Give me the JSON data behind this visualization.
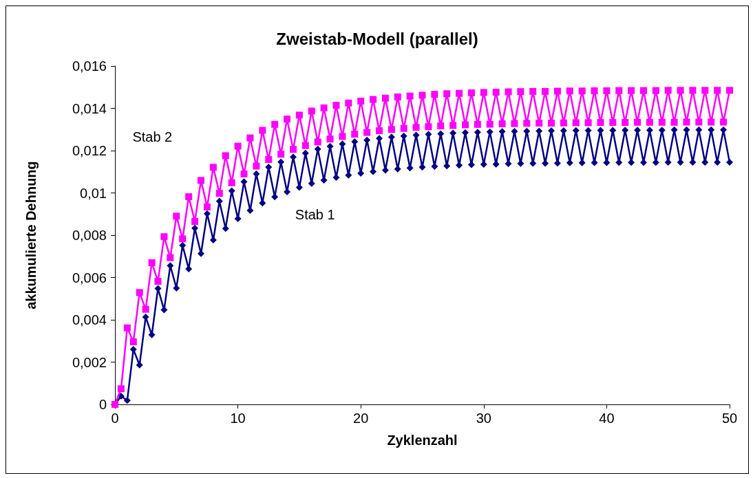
{
  "chart_data": {
    "type": "line",
    "title": "Zweistab-Modell (parallel)",
    "xlabel": "Zyklenzahl",
    "ylabel": "akkumulierte Dehnung",
    "x": [
      0,
      0.5,
      1,
      1.5,
      2,
      2.5,
      3,
      3.5,
      4,
      4.5,
      5,
      5.5,
      6,
      6.5,
      7,
      7.5,
      8,
      8.5,
      9,
      9.5,
      10,
      10.5,
      11,
      11.5,
      12,
      12.5,
      13,
      13.5,
      14,
      14.5,
      15,
      15.5,
      16,
      16.5,
      17,
      17.5,
      18,
      18.5,
      19,
      19.5,
      20,
      20.5,
      21,
      21.5,
      22,
      22.5,
      23,
      23.5,
      24,
      24.5,
      25,
      25.5,
      26,
      26.5,
      27,
      27.5,
      28,
      28.5,
      29,
      29.5,
      30,
      30.5,
      31,
      31.5,
      32,
      32.5,
      33,
      33.5,
      34,
      34.5,
      35,
      35.5,
      36,
      36.5,
      37,
      37.5,
      38,
      38.5,
      39,
      39.5,
      40,
      40.5,
      41,
      41.5,
      42,
      42.5,
      43,
      43.5,
      44,
      44.5,
      45,
      45.5,
      46,
      46.5,
      47,
      47.5,
      48,
      48.5,
      49,
      49.5,
      50
    ],
    "series": [
      {
        "name": "Stab 1",
        "color": "#000080",
        "marker": "diamond",
        "values": [
          0,
          0.00039,
          0.00019,
          0.0026,
          0.00186,
          0.00413,
          0.00329,
          0.00548,
          0.00447,
          0.00656,
          0.0055,
          0.00752,
          0.00641,
          0.00833,
          0.00713,
          0.00902,
          0.00777,
          0.00961,
          0.00832,
          0.0101,
          0.00878,
          0.01053,
          0.00917,
          0.0109,
          0.00952,
          0.01122,
          0.00981,
          0.01146,
          0.01005,
          0.0117,
          0.01026,
          0.01188,
          0.01045,
          0.01207,
          0.0106,
          0.0122,
          0.01073,
          0.01232,
          0.01084,
          0.01242,
          0.01093,
          0.0125,
          0.01101,
          0.01258,
          0.01107,
          0.01264,
          0.01113,
          0.01269,
          0.01118,
          0.01273,
          0.01122,
          0.01277,
          0.01125,
          0.0128,
          0.01128,
          0.01283,
          0.01131,
          0.01285,
          0.01133,
          0.01287,
          0.01135,
          0.01289,
          0.01136,
          0.0129,
          0.01138,
          0.01291,
          0.01139,
          0.01292,
          0.0114,
          0.01293,
          0.0114,
          0.01294,
          0.01141,
          0.01294,
          0.01142,
          0.01295,
          0.01142,
          0.01295,
          0.01143,
          0.01296,
          0.01143,
          0.01296,
          0.01144,
          0.01297,
          0.01144,
          0.01297,
          0.01144,
          0.01297,
          0.01144,
          0.01297,
          0.01145,
          0.01298,
          0.01145,
          0.01298,
          0.01145,
          0.01298,
          0.01145,
          0.01298,
          0.01145,
          0.01298,
          0.01145
        ]
      },
      {
        "name": "Stab 2",
        "color": "#ff00ff",
        "marker": "square",
        "values": [
          0,
          0.00074,
          0.00362,
          0.00296,
          0.00529,
          0.0045,
          0.0067,
          0.00582,
          0.00793,
          0.00694,
          0.0089,
          0.00783,
          0.00982,
          0.00865,
          0.01059,
          0.00934,
          0.01121,
          0.00998,
          0.01176,
          0.01048,
          0.01221,
          0.0109,
          0.0126,
          0.01127,
          0.01296,
          0.01158,
          0.01324,
          0.01183,
          0.01349,
          0.01206,
          0.01368,
          0.01224,
          0.01387,
          0.01241,
          0.01402,
          0.01255,
          0.01414,
          0.01267,
          0.01425,
          0.01278,
          0.01434,
          0.01286,
          0.01442,
          0.01294,
          0.01448,
          0.013,
          0.01454,
          0.01305,
          0.01458,
          0.0131,
          0.01462,
          0.01313,
          0.01466,
          0.01317,
          0.01469,
          0.01319,
          0.01471,
          0.01322,
          0.01473,
          0.01324,
          0.01475,
          0.01325,
          0.01476,
          0.01327,
          0.01478,
          0.01328,
          0.01479,
          0.01329,
          0.0148,
          0.0133,
          0.0148,
          0.0133,
          0.01481,
          0.01331,
          0.01482,
          0.01332,
          0.01482,
          0.01332,
          0.01483,
          0.01333,
          0.01483,
          0.01333,
          0.01484,
          0.01333,
          0.01484,
          0.01334,
          0.01484,
          0.01334,
          0.01484,
          0.01334,
          0.01485,
          0.01334,
          0.01485,
          0.01335,
          0.01485,
          0.01335,
          0.01485,
          0.01335,
          0.01485,
          0.01335,
          0.01485
        ]
      }
    ],
    "xlim": [
      0,
      50
    ],
    "xticks": [
      0,
      10,
      20,
      30,
      40,
      50
    ],
    "ylim": [
      0,
      0.016
    ],
    "yticks": [
      0,
      {
        "value": 0.002,
        "label": "0,002"
      },
      {
        "value": 0.004,
        "label": "0,004"
      },
      {
        "value": 0.006,
        "label": "0,006"
      },
      {
        "value": 0.008,
        "label": "0,008"
      },
      {
        "value": 0.01,
        "label": "0,01"
      },
      {
        "value": 0.012,
        "label": "0,012"
      },
      {
        "value": 0.014,
        "label": "0,014"
      },
      {
        "value": 0.016,
        "label": "0,016"
      }
    ],
    "grid": false,
    "legend": false,
    "line_style": "solid"
  }
}
